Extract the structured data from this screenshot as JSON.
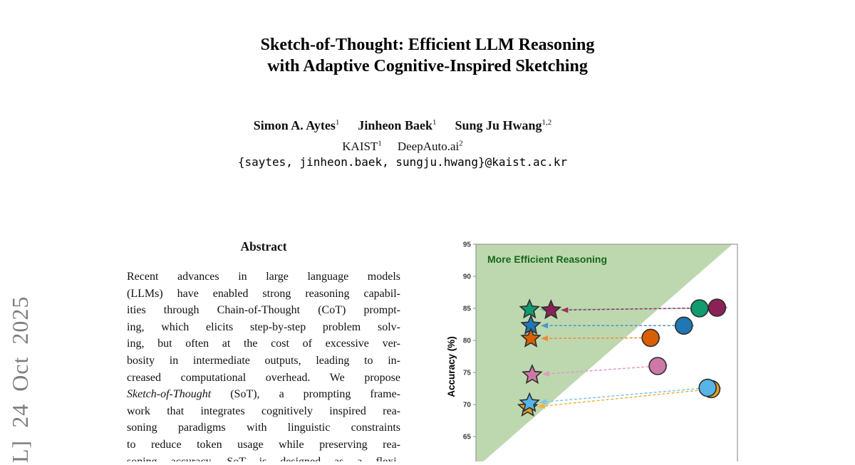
{
  "arxiv_watermark": "L]  24 Oct 2025",
  "title": {
    "line1": "Sketch-of-Thought: Efficient LLM Reasoning",
    "line2": "with Adaptive Cognitive-Inspired Sketching"
  },
  "authors": [
    {
      "name": "Simon A. Aytes",
      "sup": "1"
    },
    {
      "name": "Jinheon Baek",
      "sup": "1"
    },
    {
      "name": "Sung Ju Hwang",
      "sup": "1,2"
    }
  ],
  "affiliations": [
    {
      "name": "KAIST",
      "sup": "1"
    },
    {
      "name": "DeepAuto.ai",
      "sup": "2"
    }
  ],
  "email": "{saytes, jinheon.baek, sungju.hwang}@kaist.ac.kr",
  "abstract": {
    "heading": "Abstract",
    "lines": [
      {
        "pre": "Recent advances in large language models"
      },
      {
        "pre": "(LLMs) have enabled strong reasoning capabil-"
      },
      {
        "pre": "ities through Chain-of-Thought (CoT) prompt-"
      },
      {
        "pre": "ing, which elicits step-by-step problem solv-"
      },
      {
        "pre": "ing, but often at the cost of excessive ver-"
      },
      {
        "pre": "bosity in intermediate outputs, leading to in-"
      },
      {
        "pre": "creased computational overhead. We propose"
      },
      {
        "pre": "",
        "em": "Sketch-of-Thought",
        "post": " (SoT), a prompting frame-"
      },
      {
        "pre": "work that integrates cognitively inspired rea-"
      },
      {
        "pre": "soning paradigms with linguistic constraints"
      },
      {
        "pre": "to reduce token usage while preserving rea-"
      },
      {
        "pre": "soning accuracy. SoT is designed as a flexi-"
      }
    ]
  },
  "chart_data": {
    "type": "scatter",
    "region_label": "More Efficient Reasoning",
    "region_label_color": "#15661c",
    "region_fill": "#bdd8ae",
    "ylabel": "Accuracy (%)",
    "yticks": [
      95,
      90,
      85,
      80,
      75,
      70,
      65
    ],
    "ylim_visible_top": 95,
    "x_axis_visible": false,
    "marker_note": "stars joined to circles by leftward dashed arrows",
    "series": [
      {
        "id": "teal-green",
        "color": "#129a71",
        "arrow_color": "#6fc3a4",
        "star": {
          "x": 0.205,
          "y": 84.8
        },
        "circle": {
          "x": 0.855,
          "y": 85.0
        }
      },
      {
        "id": "dark-magenta",
        "color": "#8b2257",
        "arrow_color": "#9c2f63",
        "star": {
          "x": 0.287,
          "y": 84.7
        },
        "circle": {
          "x": 0.922,
          "y": 85.1
        }
      },
      {
        "id": "blue",
        "color": "#1f77b4",
        "arrow_color": "#4d94cf",
        "star": {
          "x": 0.21,
          "y": 82.3
        },
        "circle": {
          "x": 0.795,
          "y": 82.3
        }
      },
      {
        "id": "orange",
        "color": "#d95f02",
        "arrow_color": "#ef8a33",
        "star": {
          "x": 0.21,
          "y": 80.3
        },
        "circle": {
          "x": 0.668,
          "y": 80.4
        }
      },
      {
        "id": "pink",
        "color": "#cc79a7",
        "arrow_color": "#df9cc4",
        "star": {
          "x": 0.215,
          "y": 74.6
        },
        "circle": {
          "x": 0.695,
          "y": 76.0
        }
      },
      {
        "id": "amber",
        "color": "#dfa020",
        "arrow_color": "#f0b43c",
        "star": {
          "x": 0.198,
          "y": 69.5
        },
        "circle": {
          "x": 0.9,
          "y": 72.4
        }
      },
      {
        "id": "light-blue",
        "color": "#56b4e9",
        "arrow_color": "#7cc6ee",
        "star": {
          "x": 0.205,
          "y": 70.2
        },
        "circle": {
          "x": 0.886,
          "y": 72.6
        }
      }
    ]
  }
}
